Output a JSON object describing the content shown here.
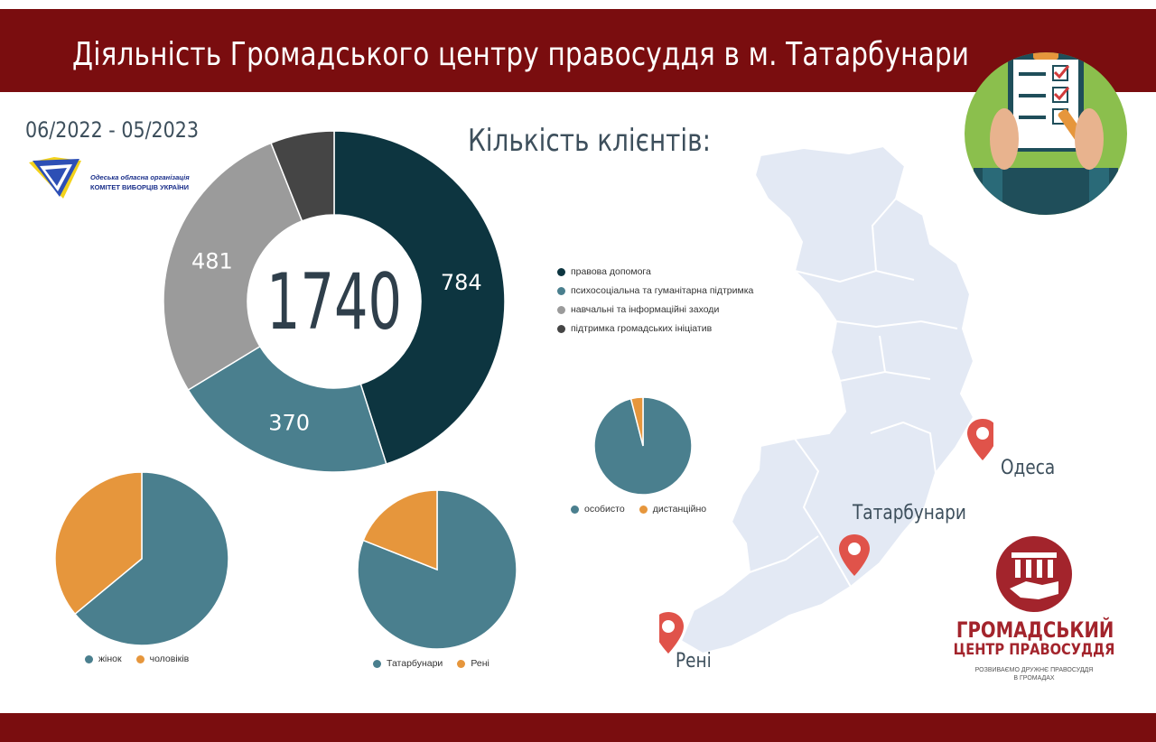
{
  "header": {
    "title": "Діяльність Громадського центру правосуддя в м. Татарбунари",
    "period": "06/2022 - 05/2023"
  },
  "kvu_logo": {
    "line1": "Одеська обласна організація",
    "line2": "КОМІТЕТ ВИБОРЦІВ УКРАЇНИ"
  },
  "clients_title": "Кількість клієнтів:",
  "chart_data": [
    {
      "type": "pie",
      "variant": "donut",
      "center_label": "1740",
      "categories": [
        "правова допомога",
        "психосоціальна та гуманітарна підтримка",
        "навчальні та інформаційні заходи",
        "підтримка громадських ініціатив"
      ],
      "values": [
        784,
        370,
        481,
        105
      ],
      "data_labels": [
        "784",
        "370",
        "481",
        ""
      ],
      "colors": [
        "#0d3540",
        "#4a7f8e",
        "#9b9b9b",
        "#454545"
      ],
      "legend_position": "right"
    },
    {
      "type": "pie",
      "categories": [
        "жінок",
        "чоловіків"
      ],
      "values": [
        64,
        36
      ],
      "colors": [
        "#4a7f8e",
        "#e6963c"
      ],
      "legend_position": "bottom"
    },
    {
      "type": "pie",
      "categories": [
        "Татарбунари",
        "Рені"
      ],
      "values": [
        81,
        19
      ],
      "colors": [
        "#4a7f8e",
        "#e6963c"
      ],
      "legend_position": "bottom"
    },
    {
      "type": "pie",
      "categories": [
        "особисто",
        "дистанційно"
      ],
      "values": [
        96,
        4
      ],
      "colors": [
        "#4a7f8e",
        "#e6963c"
      ],
      "legend_position": "bottom"
    }
  ],
  "map": {
    "cities": [
      "Одеса",
      "Татарбунари",
      "Рені"
    ],
    "pin_color": "#e0534a",
    "region_color": "#e3e9f4"
  },
  "gcp_logo": {
    "name_line1": "ГРОМАДСЬКИЙ",
    "name_line2": "ЦЕНТР ПРАВОСУДДЯ",
    "slogan_line1": "РОЗВИВАЄМО ДРУЖНЄ ПРАВОСУДДЯ",
    "slogan_line2": "В ГРОМАДАХ",
    "color": "#a3242c"
  },
  "badge_icon": "clipboard-checklist-icon"
}
